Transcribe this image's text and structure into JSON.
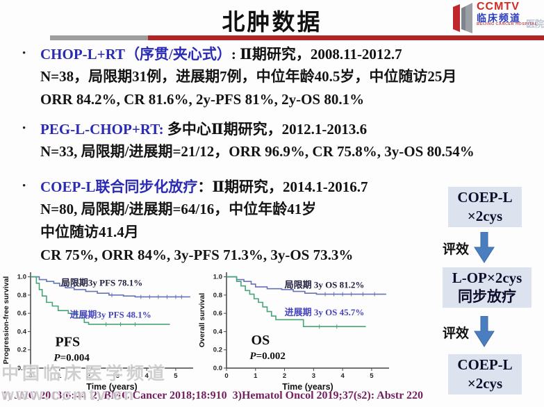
{
  "slide": {
    "title": "北肿数据",
    "accent_gray": "#9e9e9e",
    "accent_red": "#b02626"
  },
  "logo": {
    "brand": "CCMTV",
    "channel": "临床频道",
    "subtitle": "BEIJING CANCER HOSPITAL",
    "faded_fragment": "医院",
    "brand_color": "#d42a24",
    "channel_color": "#2a3bbf"
  },
  "bullets": [
    {
      "head_blue": "CHOP-L+RT（序贯/夹心式）",
      "head_black": ": Ⅱ期研究，2008.11-2012.7",
      "lines": [
        "N=38，局限期31例，进展期7例，中位年龄40.5岁，中位随访25月",
        "ORR 84.2%, CR 81.6%, 2y-PFS 81%, 2y-OS 80.1%"
      ]
    },
    {
      "head_blue": "PEG-L-CHOP+RT:",
      "head_black": " 多中心Ⅱ期研究，2012.1-2013.6",
      "lines": [
        "N=33, 局限期/进展期=21/12，ORR 96.9%, CR 75.8%, 3y-OS 80.54%"
      ]
    },
    {
      "head_blue": "COEP-L联合同步化放疗",
      "head_black": "：Ⅱ期研究，2014.1-2016.7",
      "lines": [
        "N=80, 局限期/进展期=64/16，中位年龄41岁",
        "中位随访41.4月",
        "CR 75%, ORR 84%, 3y-PFS 71.3%, 3y-OS 73.3%"
      ]
    }
  ],
  "flowchart": {
    "box_bg": "#dce3ef",
    "arrow_color": "#4a7ebf",
    "arrow_labels": [
      "评效",
      "评效"
    ],
    "steps": [
      {
        "lines": [
          "COEP-L",
          "×2cys"
        ]
      },
      {
        "lines": [
          "L-OP×2cys",
          "同步放疗"
        ]
      },
      {
        "lines": [
          "COEP-L",
          "×2cys"
        ]
      }
    ]
  },
  "chart_data": [
    {
      "type": "line",
      "subtype": "kaplan-meier-step",
      "title": "PFS",
      "p_value": "P=0.004",
      "xlabel": "Time (years)",
      "ylabel": "Progression-free survival",
      "xlim": [
        0,
        5.6
      ],
      "ylim": [
        0,
        1.05
      ],
      "xticks": [
        0,
        1,
        2,
        3,
        4,
        5
      ],
      "yticks": [
        0,
        0.2,
        0.4,
        0.6,
        0.8,
        1.0
      ],
      "title_xy": [
        0.85,
        0.24
      ],
      "p_xy": [
        0.8,
        0.08
      ],
      "series": [
        {
          "key": "limited-stage",
          "name": "局限期",
          "color": "#6472b6",
          "annotation": "局限期3y PFS  78.1%",
          "ann_color": "#1f1f3e",
          "ann_xy": [
            1.05,
            0.9
          ],
          "points": [
            [
              0,
              1
            ],
            [
              0.25,
              1
            ],
            [
              0.3,
              0.97
            ],
            [
              0.55,
              0.95
            ],
            [
              0.8,
              0.93
            ],
            [
              1,
              0.9
            ],
            [
              1.2,
              0.88
            ],
            [
              1.5,
              0.86
            ],
            [
              1.9,
              0.84
            ],
            [
              2.3,
              0.82
            ],
            [
              2.7,
              0.8
            ],
            [
              3.2,
              0.79
            ],
            [
              3.6,
              0.78
            ],
            [
              5.5,
              0.78
            ]
          ],
          "censors": [
            [
              2.8,
              0.8
            ],
            [
              3.8,
              0.78
            ],
            [
              4.1,
              0.78
            ],
            [
              4.4,
              0.78
            ],
            [
              4.7,
              0.78
            ],
            [
              5,
              0.78
            ],
            [
              5.2,
              0.78
            ]
          ]
        },
        {
          "key": "advanced-stage",
          "name": "进展期",
          "color": "#46a475",
          "annotation": "进展期3y PFS  48.1%",
          "ann_color": "#4545bd",
          "ann_xy": [
            1.35,
            0.55
          ],
          "points": [
            [
              0,
              1
            ],
            [
              0.15,
              1
            ],
            [
              0.2,
              0.93
            ],
            [
              0.3,
              0.86
            ],
            [
              0.4,
              0.79
            ],
            [
              0.55,
              0.72
            ],
            [
              0.75,
              0.68
            ],
            [
              0.95,
              0.63
            ],
            [
              1.3,
              0.6
            ],
            [
              1.6,
              0.55
            ],
            [
              1.85,
              0.5
            ],
            [
              2,
              0.48
            ],
            [
              4.8,
              0.48
            ]
          ],
          "censors": [
            [
              2.6,
              0.48
            ],
            [
              3.1,
              0.48
            ],
            [
              3.6,
              0.48
            ]
          ]
        }
      ]
    },
    {
      "type": "line",
      "subtype": "kaplan-meier-step",
      "title": "OS",
      "p_value": "P=0.002",
      "xlabel": "Time (years)",
      "ylabel": "Overall survival",
      "xlim": [
        0,
        5.6
      ],
      "ylim": [
        0,
        1.05
      ],
      "xticks": [
        0,
        1,
        2,
        3,
        4,
        5
      ],
      "yticks": [
        0,
        0.2,
        0.4,
        0.6,
        0.8,
        1.0
      ],
      "title_xy": [
        0.85,
        0.26
      ],
      "p_xy": [
        0.8,
        0.1
      ],
      "series": [
        {
          "key": "limited-stage",
          "name": "局限期",
          "color": "#6472b6",
          "annotation": "局限期 3y OS 81.2%",
          "ann_color": "#1f1f3e",
          "ann_xy": [
            2.0,
            0.88
          ],
          "points": [
            [
              0,
              1
            ],
            [
              0.3,
              1
            ],
            [
              0.35,
              0.97
            ],
            [
              0.6,
              0.95
            ],
            [
              0.85,
              0.92
            ],
            [
              1,
              0.89
            ],
            [
              1.4,
              0.87
            ],
            [
              1.9,
              0.86
            ],
            [
              2.3,
              0.84
            ],
            [
              2.7,
              0.82
            ],
            [
              3.1,
              0.81
            ],
            [
              5.5,
              0.81
            ]
          ],
          "censors": [
            [
              3.4,
              0.81
            ],
            [
              3.7,
              0.81
            ],
            [
              4,
              0.81
            ],
            [
              4.3,
              0.81
            ],
            [
              4.7,
              0.81
            ],
            [
              5.1,
              0.81
            ]
          ]
        },
        {
          "key": "advanced-stage",
          "name": "进展期",
          "color": "#46a475",
          "annotation": "进展期 3y OS  45.7%",
          "ann_color": "#4545bd",
          "ann_xy": [
            2.0,
            0.58
          ],
          "points": [
            [
              0,
              1
            ],
            [
              0.3,
              1
            ],
            [
              0.35,
              0.95
            ],
            [
              0.5,
              0.9
            ],
            [
              0.65,
              0.85
            ],
            [
              0.8,
              0.81
            ],
            [
              0.95,
              0.76
            ],
            [
              1.1,
              0.72
            ],
            [
              1.25,
              0.67
            ],
            [
              1.4,
              0.62
            ],
            [
              1.55,
              0.57
            ],
            [
              1.7,
              0.53
            ],
            [
              2.6,
              0.53
            ],
            [
              2.65,
              0.455
            ],
            [
              4.8,
              0.455
            ]
          ],
          "censors": [
            [
              3.2,
              0.455
            ],
            [
              3.8,
              0.455
            ]
          ]
        }
      ]
    }
  ],
  "references": "1) JHO 2013;6:44  2) BMC Cancer 2018;18:910  3)Hematol Oncol 2019;37(s2): Abstr 220",
  "watermark": {
    "line1": "中国临床医学频道",
    "line2": "www.ccmtv.cn"
  }
}
